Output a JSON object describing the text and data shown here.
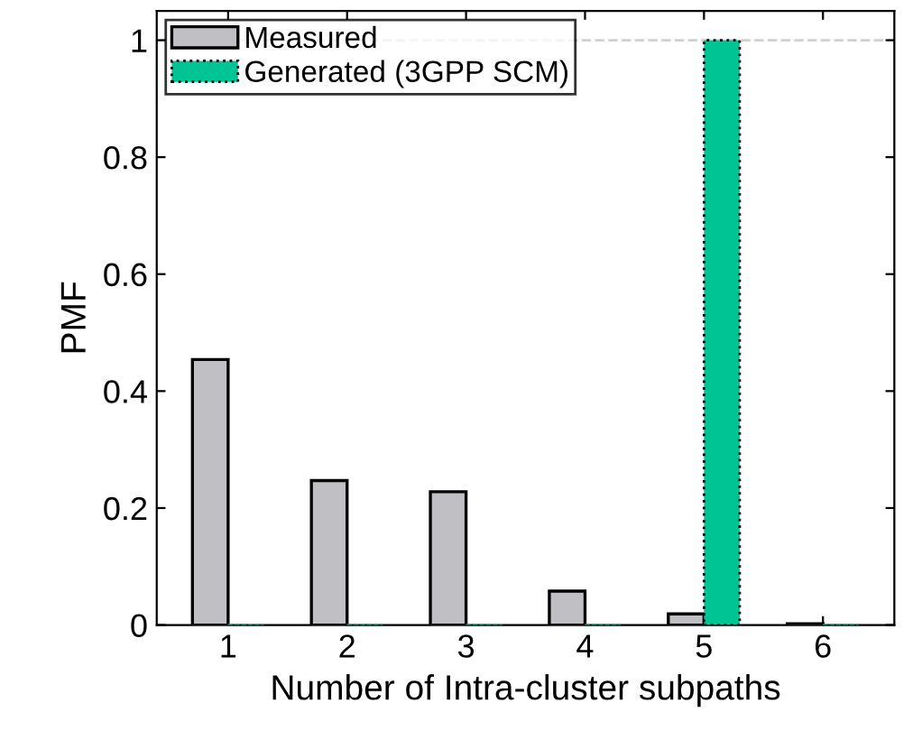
{
  "chart_data": {
    "type": "bar",
    "xlabel": "Number of Intra-cluster subpaths",
    "ylabel": "PMF",
    "categories": [
      "1",
      "2",
      "3",
      "4",
      "5",
      "6"
    ],
    "series": [
      {
        "name": "Measured",
        "color": "#c0c0c4",
        "values": [
          0.454,
          0.247,
          0.228,
          0.058,
          0.019,
          0.002
        ]
      },
      {
        "name": "Generated (3GPP SCM)",
        "color": "#00c493",
        "values": [
          0,
          0,
          0,
          0,
          1,
          0
        ],
        "line_style": "dotted"
      }
    ],
    "ylim": [
      0,
      1.05
    ],
    "yticks": [
      0,
      0.2,
      0.4,
      0.6,
      0.8,
      1
    ],
    "ref_lines": [
      {
        "axis": "y",
        "value": 1,
        "color": "#d0d0d0",
        "line_style": "dashed"
      }
    ],
    "grid": false,
    "legend": "top left"
  }
}
